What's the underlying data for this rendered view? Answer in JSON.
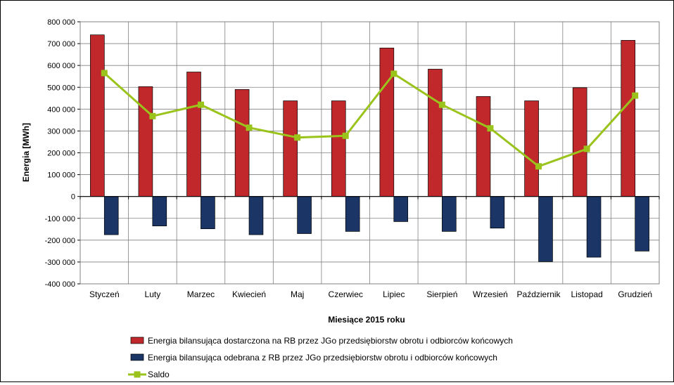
{
  "chart_data": {
    "type": "bar",
    "xlabel": "Miesiące 2015  roku",
    "ylabel": "Energia [MWh]",
    "ylim": [
      -400000,
      800000
    ],
    "ytick_step": 100000,
    "yticks": [
      "800 000",
      "700 000",
      "600 000",
      "500 000",
      "400 000",
      "300 000",
      "200 000",
      "100 000",
      "0",
      "-100 000",
      "-200 000",
      "-300 000",
      "-400 000"
    ],
    "grid": true,
    "legend_position": "bottom",
    "categories": [
      "Styczeń",
      "Luty",
      "Marzec",
      "Kwiecień",
      "Maj",
      "Czerwiec",
      "Lipiec",
      "Sierpień",
      "Wrzesień",
      "Październik",
      "Listopad",
      "Grudzień"
    ],
    "series": [
      {
        "name": "Energia bilansująca dostarczona na RB przez JGo przedsiębiorstw obrotu i odbiorców końcowych",
        "type": "bar",
        "color": "#c0282c",
        "values": [
          740000,
          503000,
          570000,
          490000,
          438000,
          438000,
          680000,
          583000,
          458000,
          438000,
          498000,
          715000
        ]
      },
      {
        "name": "Energia bilansująca odebrana z RB przez JGo przedsiębiorstw obrotu i odbiorców końcowych",
        "type": "bar",
        "color": "#1a3566",
        "values": [
          -175000,
          -135000,
          -148000,
          -175000,
          -170000,
          -160000,
          -115000,
          -160000,
          -145000,
          -298000,
          -278000,
          -250000
        ]
      },
      {
        "name": "Saldo",
        "type": "line",
        "color": "#9ac31c",
        "values": [
          565000,
          368000,
          420000,
          315000,
          270000,
          278000,
          562000,
          420000,
          312000,
          138000,
          218000,
          462000
        ]
      }
    ]
  }
}
